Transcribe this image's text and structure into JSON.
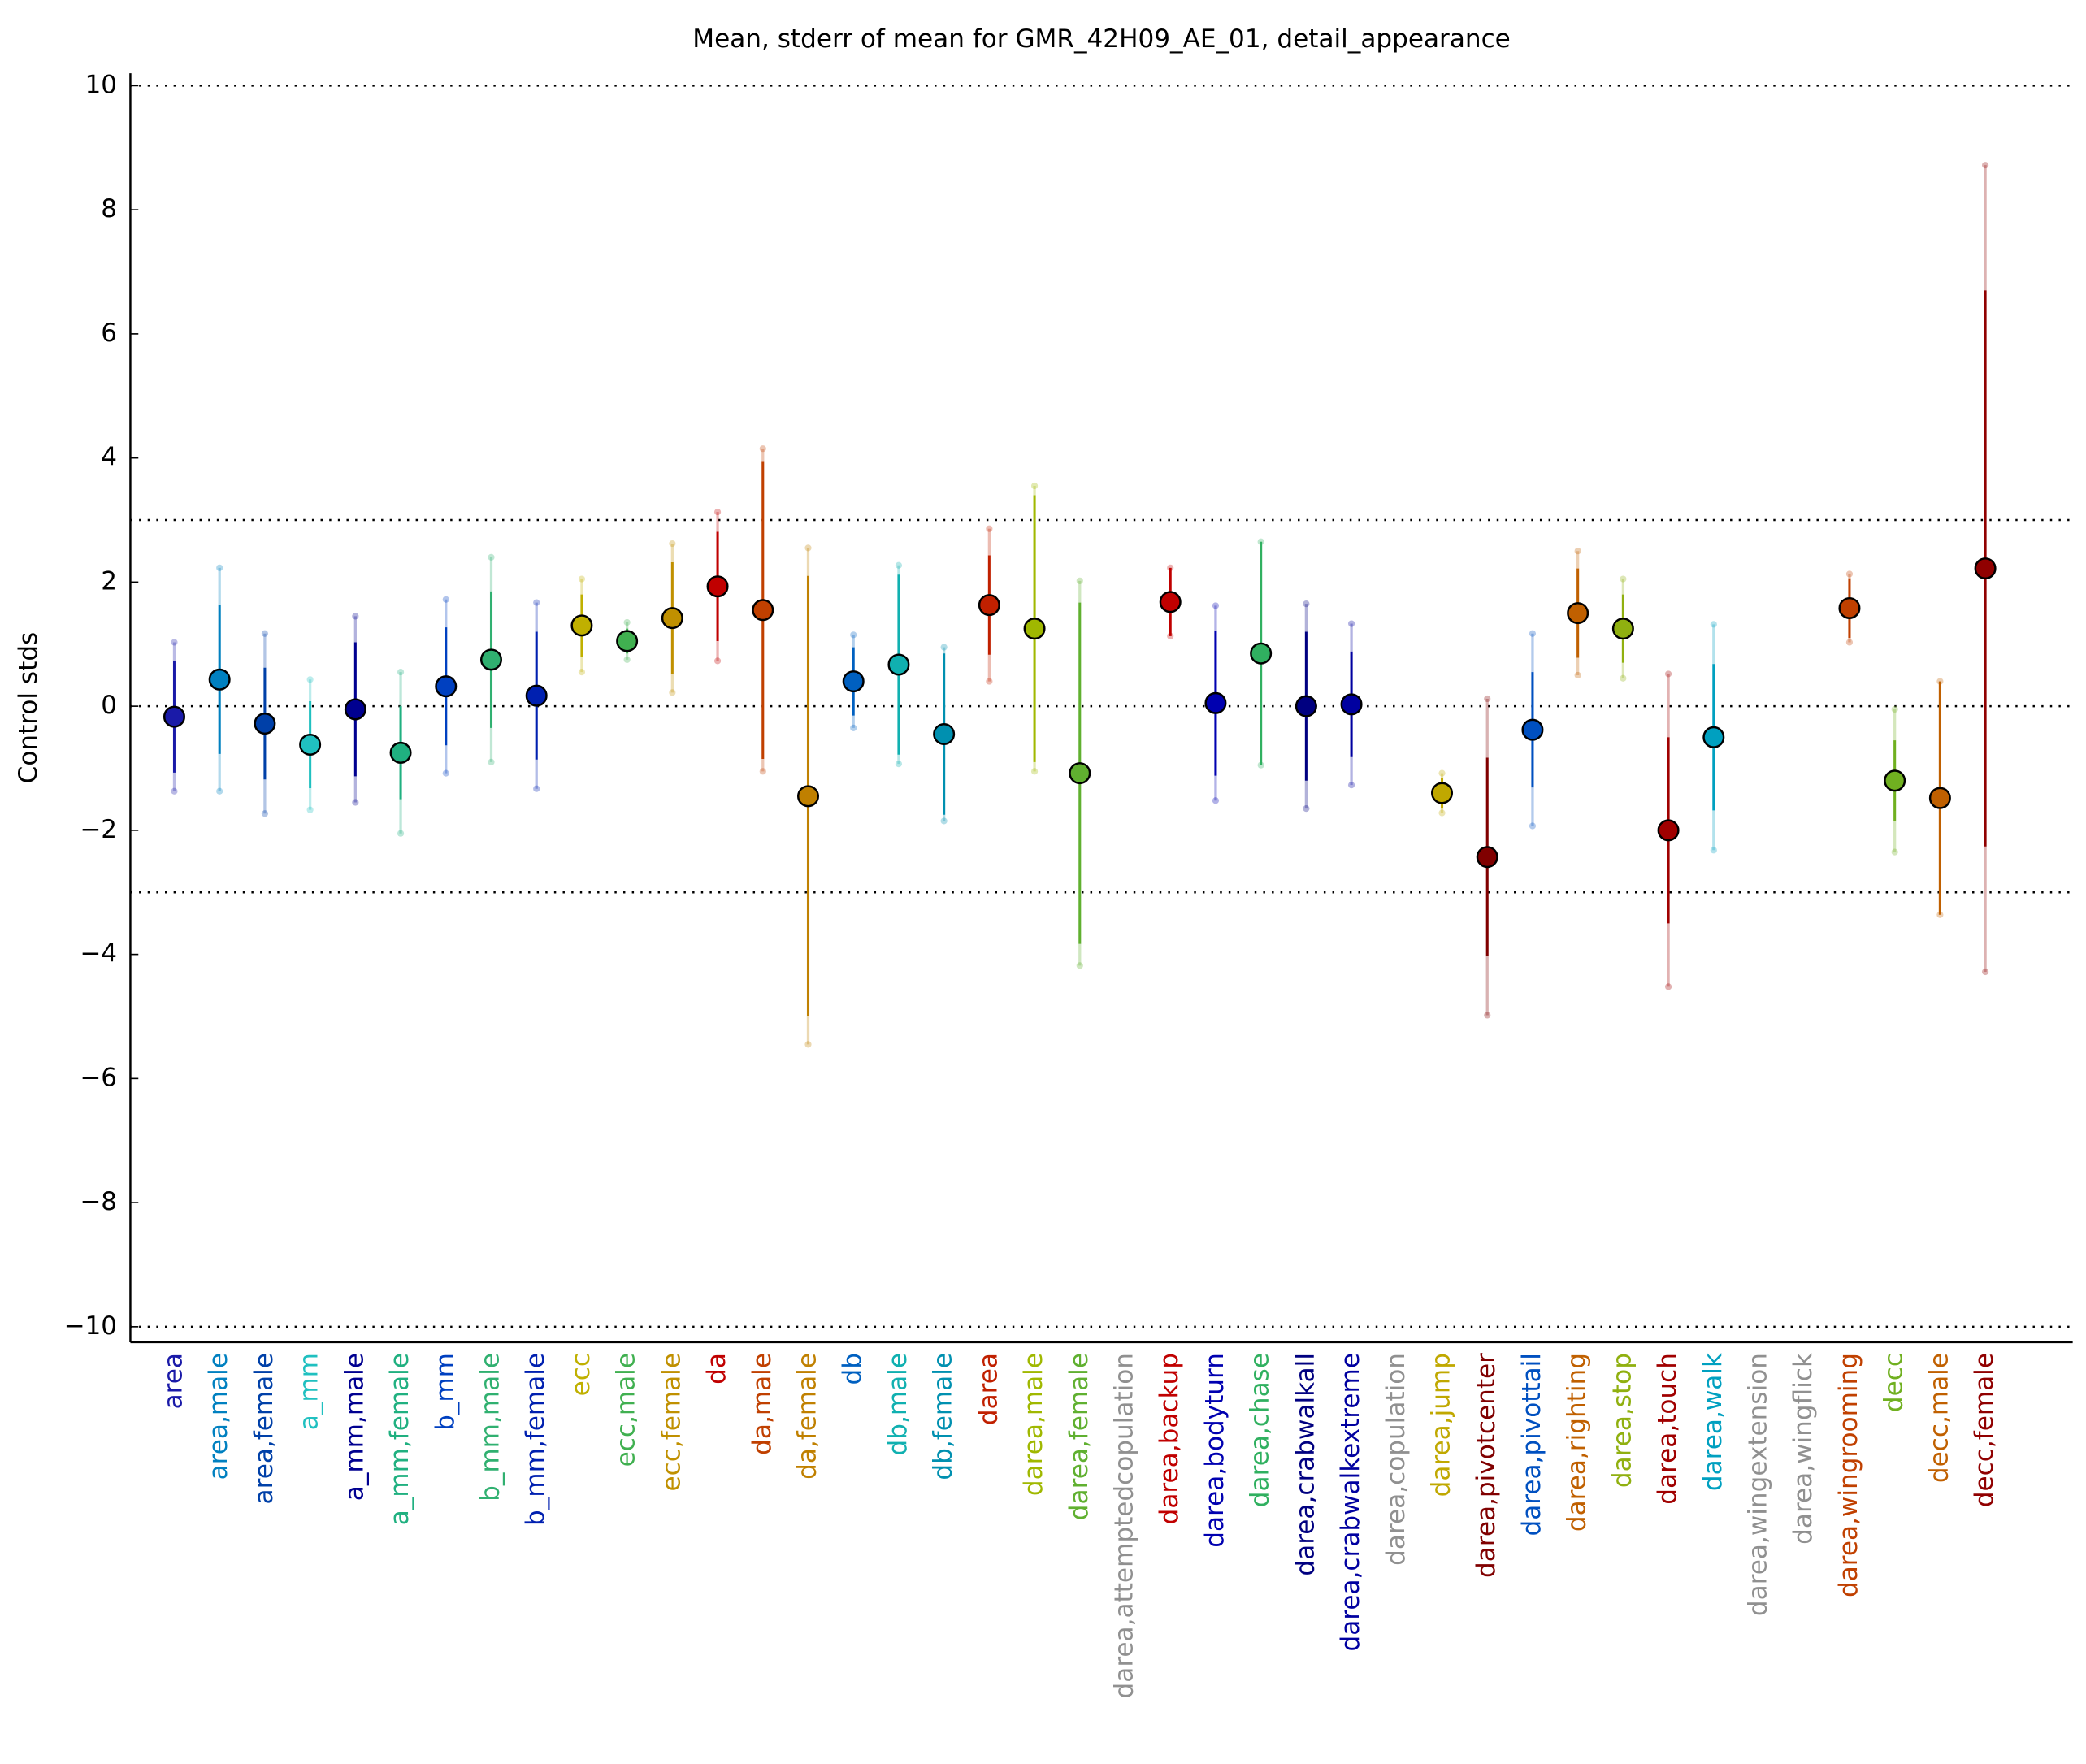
{
  "chart_data": {
    "type": "errorbar",
    "title": "Mean, stderr of mean for GMR_42H09_AE_01, detail_appearance",
    "ylabel": "Control stds",
    "categories": [
      "area",
      "area,male",
      "area,female",
      "a_mm",
      "a_mm,male",
      "a_mm,female",
      "b_mm",
      "b_mm,male",
      "b_mm,female",
      "ecc",
      "ecc,male",
      "ecc,female",
      "da",
      "da,male",
      "da,female",
      "db",
      "db,male",
      "db,female",
      "darea",
      "darea,male",
      "darea,female",
      "darea,attemptedcopulation",
      "darea,backup",
      "darea,bodyturn",
      "darea,chase",
      "darea,crabwalkall",
      "darea,crabwalkextreme",
      "darea,copulation",
      "darea,jump",
      "darea,pivotcenter",
      "darea,pivottail",
      "darea,righting",
      "darea,stop",
      "darea,touch",
      "darea,walk",
      "darea,wingextension",
      "darea,wingflick",
      "darea,wingrooming",
      "decc",
      "decc,male",
      "decc,female"
    ],
    "values": [
      -0.17,
      0.43,
      -0.28,
      -0.62,
      -0.05,
      -0.75,
      0.32,
      0.75,
      0.17,
      1.3,
      1.05,
      1.42,
      1.93,
      1.55,
      -1.45,
      0.4,
      0.67,
      -0.45,
      1.63,
      1.25,
      -1.08,
      null,
      1.68,
      0.05,
      0.85,
      0.0,
      0.03,
      null,
      -1.4,
      -2.43,
      -0.38,
      1.5,
      1.25,
      -2.0,
      -0.5,
      null,
      null,
      1.58,
      -1.2,
      -1.48,
      2.22
    ],
    "errors": [
      0.9,
      1.2,
      0.9,
      0.7,
      1.08,
      0.75,
      0.95,
      1.1,
      1.03,
      0.5,
      0.2,
      0.9,
      0.88,
      2.4,
      3.55,
      0.55,
      1.45,
      1.3,
      0.8,
      2.15,
      2.75,
      null,
      0.55,
      1.17,
      1.8,
      1.2,
      0.85,
      null,
      0.25,
      1.6,
      0.93,
      0.72,
      0.55,
      1.5,
      1.18,
      null,
      null,
      0.48,
      0.65,
      1.88,
      4.48
    ],
    "spread": [
      1.2,
      1.8,
      1.45,
      1.05,
      1.5,
      1.3,
      1.4,
      1.65,
      1.5,
      0.75,
      0.3,
      1.2,
      1.2,
      2.6,
      4.0,
      0.75,
      1.6,
      1.4,
      1.23,
      2.3,
      3.1,
      null,
      0.55,
      1.57,
      1.8,
      1.65,
      1.3,
      null,
      0.32,
      2.55,
      1.55,
      1.0,
      0.8,
      2.52,
      1.82,
      null,
      null,
      0.55,
      1.15,
      1.88,
      6.5
    ],
    "colors": [
      "#1a1aa8",
      "#0080c0",
      "#0040a8",
      "#20c0c0",
      "#000090",
      "#20b080",
      "#0040c0",
      "#30b070",
      "#0020b0",
      "#c0b000",
      "#40b050",
      "#c09000",
      "#c00000",
      "#c04000",
      "#c08000",
      "#0060c0",
      "#10b0b0",
      "#0090b0",
      "#c02000",
      "#a0b800",
      "#60b030",
      "#909090",
      "#c00000",
      "#0000b0",
      "#30b060",
      "#000080",
      "#0000a0",
      "#909090",
      "#c0a800",
      "#800000",
      "#0050c0",
      "#c06000",
      "#90b010",
      "#a00000",
      "#00a0c0",
      "#909090",
      "#909090",
      "#c04000",
      "#70b020",
      "#c06000",
      "#900000"
    ],
    "ylim": [
      -10.25,
      10.2
    ],
    "yticks": [
      {
        "value": -10,
        "label": "−10"
      },
      {
        "value": -8,
        "label": "−8"
      },
      {
        "value": -6,
        "label": "−6"
      },
      {
        "value": -4,
        "label": "−4"
      },
      {
        "value": -2,
        "label": "−2"
      },
      0,
      2,
      4,
      6,
      8,
      10
    ],
    "reference_lines": [
      -10,
      -3,
      0,
      3,
      10
    ]
  }
}
